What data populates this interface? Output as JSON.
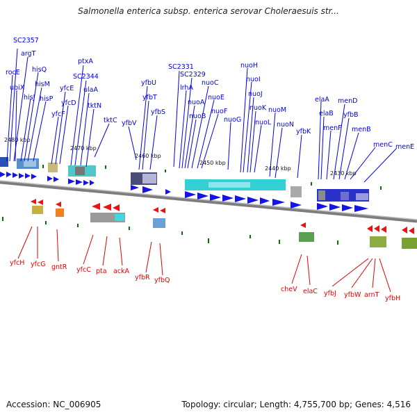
{
  "title": "Salmonella enterica subsp. enterica serovar Choleraesuis str...",
  "accession": "Accession: NC_006905",
  "summary": "Topology: circular; Length: 4,755,700 bp; Genes: 4,516",
  "colors": {
    "forward": "#0000e0",
    "reverse": "#e00000",
    "backbone": "#7a7a7a",
    "tick": "#007700"
  },
  "scale_labels": [
    "2480 kbp",
    "2470 kbp",
    "2460 kbp",
    "2450 kbp",
    "2440 kbp",
    "2430 kbp"
  ],
  "forward_genes": [
    "SC2357",
    "argT",
    "rocE",
    "ubiX",
    "hisJ",
    "hisQ",
    "hisM",
    "hisP",
    "yfcF",
    "yfcE",
    "yfcD",
    "ptxA",
    "SC2344",
    "ulaA",
    "tktN",
    "tktC",
    "yfbV",
    "yfbU",
    "yfbT",
    "yfbS",
    "SC2331",
    "lrhA",
    "SC2329",
    "nuoA",
    "nuoB",
    "nuoC",
    "nuoE",
    "nuoF",
    "nuoG",
    "nuoH",
    "nuoI",
    "nuoJ",
    "nuoK",
    "nuoL",
    "nuoM",
    "nuoN",
    "yfbK",
    "elaA",
    "elaB",
    "menF",
    "menD",
    "yfbB",
    "menB",
    "menC",
    "menE"
  ],
  "reverse_genes": [
    "yfcH",
    "yfcG",
    "gntR",
    "yfcC",
    "pta",
    "ackA",
    "yfbR",
    "yfbQ",
    "cheV",
    "elaC",
    "yfbJ",
    "yfbW",
    "arnT",
    "yfbH"
  ]
}
